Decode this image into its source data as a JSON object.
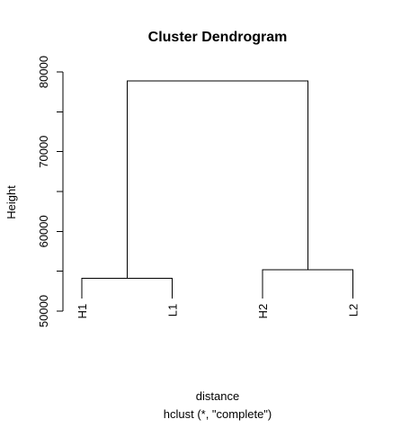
{
  "chart_data": {
    "type": "dendrogram",
    "title": "Cluster Dendrogram",
    "xlabel": "distance",
    "sublabel": "hclust (*, \"complete\")",
    "ylabel": "Height",
    "ylim": [
      50000,
      80000
    ],
    "y_ticks": [
      50000,
      60000,
      70000,
      80000
    ],
    "y_minor_ticks": [
      55000,
      65000,
      75000
    ],
    "leaves": [
      "H1",
      "L1",
      "H2",
      "L2"
    ],
    "leaf_bottom": 51600,
    "merges": [
      {
        "left": "H1",
        "right": "L1",
        "height": 54100
      },
      {
        "left": "H2",
        "right": "L2",
        "height": 55200
      },
      {
        "left": "H1+L1",
        "right": "H2+L2",
        "height": 78900
      }
    ]
  }
}
